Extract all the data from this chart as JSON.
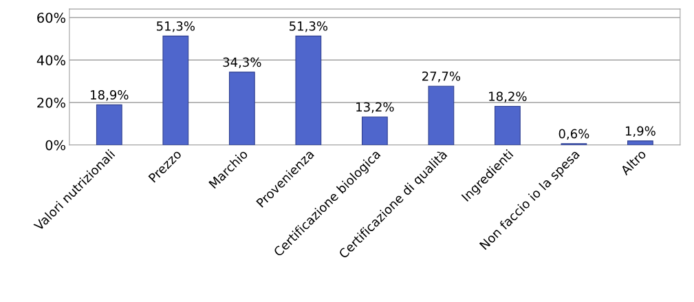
{
  "chart_data": {
    "type": "bar",
    "categories": [
      "Valori nutrizionali",
      "Prezzo",
      "Marchio",
      "Provenienza",
      "Certificazione biologica",
      "Certificazione di qualità",
      "Ingredienti",
      "Non faccio io la spesa",
      "Altro"
    ],
    "values": [
      18.9,
      51.3,
      34.3,
      51.3,
      13.2,
      27.7,
      18.2,
      0.6,
      1.9
    ],
    "value_labels": [
      "18,9%",
      "51,3%",
      "34,3%",
      "51,3%",
      "13,2%",
      "27,7%",
      "18,2%",
      "0,6%",
      "1,9%"
    ],
    "color": "#4f66cc",
    "ylim": [
      0,
      64
    ],
    "yticks": [
      {
        "value": 0,
        "label": "0%"
      },
      {
        "value": 20,
        "label": "20%"
      },
      {
        "value": 40,
        "label": "40%"
      },
      {
        "value": 60,
        "label": "60%"
      }
    ],
    "grid": "y"
  }
}
